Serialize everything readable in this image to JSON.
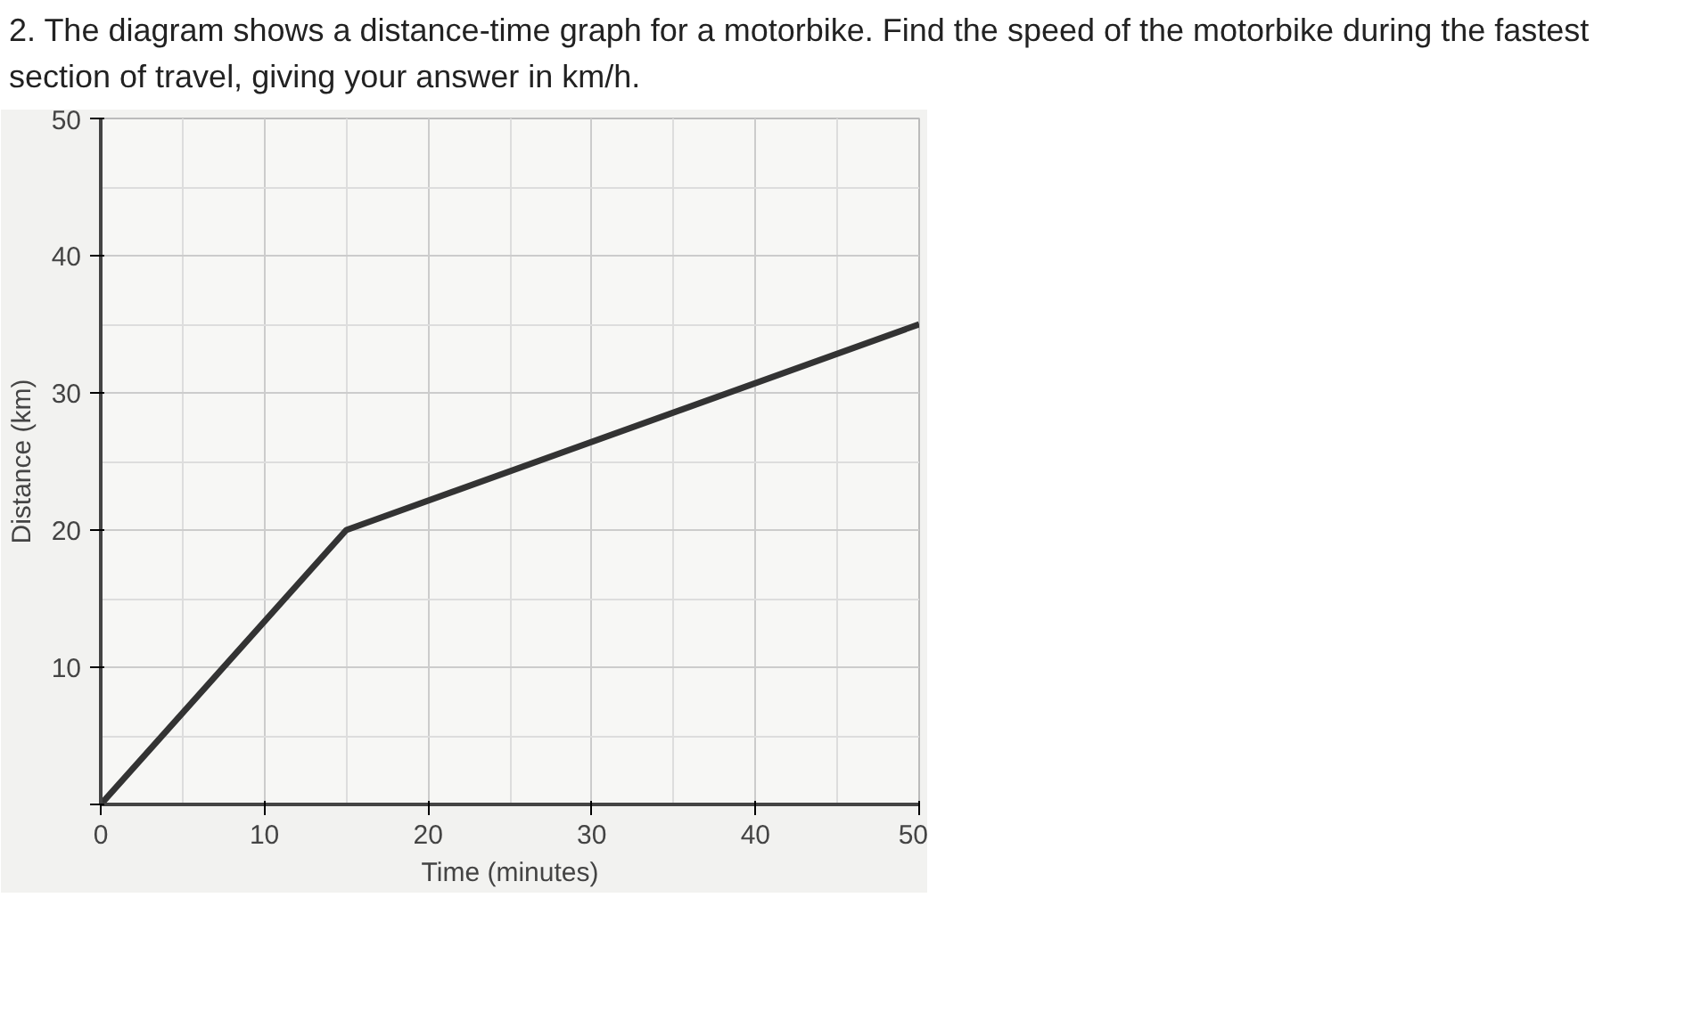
{
  "chart_data": {
    "type": "line",
    "title": "2. The diagram shows a distance-time graph for a motorbike. Find the speed of the motorbike during the fastest section of travel, giving your answer in km/h.",
    "xlabel": "Time (minutes)",
    "ylabel": "Distance (km)",
    "x": [
      0,
      15,
      50
    ],
    "series": [
      {
        "color": "#333333",
        "values": [
          0,
          20,
          35
        ]
      }
    ],
    "xlim": [
      0,
      50
    ],
    "ylim": [
      0,
      50
    ],
    "xticks": [
      0,
      10,
      20,
      30,
      40,
      50
    ],
    "yticks": [
      {
        "value": 0,
        "label": null
      },
      10,
      20,
      30,
      40,
      50
    ],
    "grid": true,
    "marker": "none",
    "line_style": "solid"
  }
}
